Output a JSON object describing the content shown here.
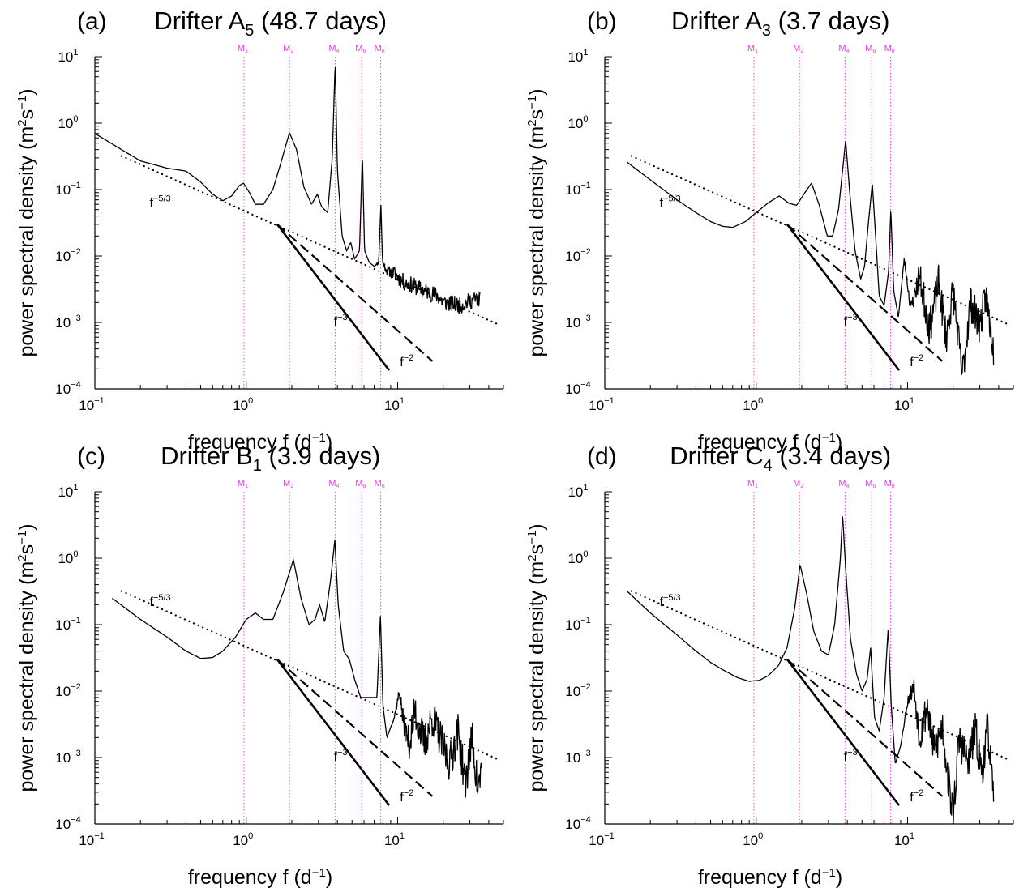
{
  "axes": {
    "xlabel_main": "frequency f (d",
    "xlabel_exp": "−1",
    "xlabel_close": ")",
    "ylabel_main": "power spectral density (m",
    "ylabel_exp1": "2",
    "ylabel_mid": "s",
    "ylabel_exp2": "−1",
    "ylabel_close": ")",
    "xscale": "log",
    "yscale": "log",
    "xlim": [
      0.1,
      50
    ],
    "ylim": [
      0.0001,
      10
    ],
    "x_ticks": [
      {
        "base": "10",
        "exp": "−1"
      },
      {
        "base": "10",
        "exp": "0"
      },
      {
        "base": "10",
        "exp": "1"
      }
    ],
    "y_ticks": [
      {
        "base": "10",
        "exp": "−4"
      },
      {
        "base": "10",
        "exp": "−3"
      },
      {
        "base": "10",
        "exp": "−2"
      },
      {
        "base": "10",
        "exp": "−1"
      },
      {
        "base": "10",
        "exp": "0"
      },
      {
        "base": "10",
        "exp": "1"
      }
    ]
  },
  "tidal_constituents": [
    {
      "label": "M",
      "sub": "1",
      "freq": 0.966
    },
    {
      "label": "M",
      "sub": "2",
      "freq": 1.932
    },
    {
      "label": "M",
      "sub": "4",
      "freq": 3.864
    },
    {
      "label": "M",
      "sub": "6",
      "freq": 5.796
    },
    {
      "label": "M",
      "sub": "8",
      "freq": 7.728
    }
  ],
  "slope_labels": {
    "f53": {
      "base": "f",
      "exp": "−5/3"
    },
    "f3": {
      "base": "f",
      "exp": "−3"
    },
    "f2": {
      "base": "f",
      "exp": "−2"
    }
  },
  "colors": {
    "tide_lines": "#e83ce8",
    "spectrum": "#000000"
  },
  "chart_data": [
    {
      "type": "line",
      "panel": "(a)",
      "title_pre": "Drifter A",
      "title_sub": "5",
      "title_post": " (48.7 days)",
      "reference_lines": {
        "f53": {
          "x": [
            0.15,
            45
          ],
          "y": [
            0.32,
            0.00096
          ]
        },
        "f3": {
          "x": [
            1.6,
            8.8
          ],
          "y": [
            0.03,
            0.00019
          ]
        },
        "f2": {
          "x": [
            1.6,
            17
          ],
          "y": [
            0.03,
            0.00026
          ]
        }
      },
      "slope_label_pos": {
        "f53": [
          0.27,
          0.055
        ],
        "f3": [
          4.2,
          0.0009
        ],
        "f2": [
          11.5,
          0.00022
        ]
      },
      "spectrum": {
        "noise_from": 7.0,
        "noise_amp": 0.13,
        "seed": 11,
        "xmin": 0.1,
        "xmax": 35,
        "knots": [
          [
            0.1,
            0.7
          ],
          [
            0.15,
            0.4
          ],
          [
            0.2,
            0.27
          ],
          [
            0.3,
            0.21
          ],
          [
            0.4,
            0.19
          ],
          [
            0.5,
            0.13
          ],
          [
            0.6,
            0.085
          ],
          [
            0.7,
            0.068
          ],
          [
            0.8,
            0.08
          ],
          [
            0.9,
            0.115
          ],
          [
            0.96,
            0.125
          ],
          [
            1.05,
            0.09
          ],
          [
            1.15,
            0.06
          ],
          [
            1.3,
            0.06
          ],
          [
            1.5,
            0.1
          ],
          [
            1.7,
            0.26
          ],
          [
            1.93,
            0.72
          ],
          [
            2.15,
            0.4
          ],
          [
            2.4,
            0.11
          ],
          [
            2.7,
            0.06
          ],
          [
            2.95,
            0.085
          ],
          [
            3.15,
            0.055
          ],
          [
            3.45,
            0.045
          ],
          [
            3.7,
            0.3
          ],
          [
            3.87,
            8.5
          ],
          [
            4.0,
            0.2
          ],
          [
            4.3,
            0.02
          ],
          [
            4.6,
            0.012
          ],
          [
            4.9,
            0.016
          ],
          [
            5.2,
            0.009
          ],
          [
            5.6,
            0.012
          ],
          [
            5.85,
            0.35
          ],
          [
            6.05,
            0.012
          ],
          [
            6.5,
            0.008
          ],
          [
            7.0,
            0.007
          ],
          [
            7.5,
            0.008
          ],
          [
            7.75,
            0.06
          ],
          [
            7.95,
            0.008
          ],
          [
            8.5,
            0.006
          ],
          [
            9.5,
            0.0055
          ],
          [
            11,
            0.004
          ],
          [
            13,
            0.0035
          ],
          [
            15,
            0.003
          ],
          [
            18,
            0.0026
          ],
          [
            20,
            0.002
          ],
          [
            23,
            0.0019
          ],
          [
            26,
            0.0018
          ],
          [
            30,
            0.0021
          ],
          [
            35,
            0.0023
          ]
        ]
      }
    },
    {
      "type": "line",
      "panel": "(b)",
      "title_pre": "Drifter A",
      "title_sub": "3",
      "title_post": " (3.7 days)",
      "reference_lines": {
        "f53": {
          "x": [
            0.15,
            45
          ],
          "y": [
            0.32,
            0.00096
          ]
        },
        "f3": {
          "x": [
            1.6,
            8.8
          ],
          "y": [
            0.03,
            0.00019
          ]
        },
        "f2": {
          "x": [
            1.6,
            17
          ],
          "y": [
            0.03,
            0.00026
          ]
        }
      },
      "slope_label_pos": {
        "f53": [
          0.27,
          0.055
        ],
        "f3": [
          4.2,
          0.0009
        ],
        "f2": [
          11.5,
          0.00022
        ]
      },
      "spectrum": {
        "noise_from": 9.0,
        "noise_amp": 0.28,
        "seed": 23,
        "xmin": 0.14,
        "xmax": 37,
        "knots": [
          [
            0.14,
            0.26
          ],
          [
            0.2,
            0.14
          ],
          [
            0.3,
            0.07
          ],
          [
            0.4,
            0.045
          ],
          [
            0.5,
            0.033
          ],
          [
            0.6,
            0.028
          ],
          [
            0.7,
            0.027
          ],
          [
            0.85,
            0.033
          ],
          [
            1.0,
            0.045
          ],
          [
            1.2,
            0.063
          ],
          [
            1.42,
            0.08
          ],
          [
            1.65,
            0.062
          ],
          [
            1.85,
            0.058
          ],
          [
            2.1,
            0.09
          ],
          [
            2.32,
            0.125
          ],
          [
            2.6,
            0.06
          ],
          [
            2.95,
            0.02
          ],
          [
            3.2,
            0.02
          ],
          [
            3.5,
            0.05
          ],
          [
            3.9,
            0.55
          ],
          [
            4.15,
            0.09
          ],
          [
            4.5,
            0.012
          ],
          [
            4.9,
            0.0045
          ],
          [
            5.2,
            0.007
          ],
          [
            5.5,
            0.03
          ],
          [
            5.85,
            0.125
          ],
          [
            6.15,
            0.02
          ],
          [
            6.5,
            0.0025
          ],
          [
            7.0,
            0.0018
          ],
          [
            7.5,
            0.006
          ],
          [
            7.75,
            0.05
          ],
          [
            8.1,
            0.003
          ],
          [
            8.7,
            0.0012
          ],
          [
            9.5,
            0.009
          ],
          [
            10.5,
            0.0016
          ],
          [
            12,
            0.005
          ],
          [
            14,
            0.0008
          ],
          [
            16,
            0.004
          ],
          [
            18,
            0.0006
          ],
          [
            20,
            0.003
          ],
          [
            23,
            0.00016
          ],
          [
            26,
            0.002
          ],
          [
            30,
            0.0009
          ],
          [
            33,
            0.0025
          ],
          [
            37,
            0.0004
          ]
        ]
      }
    },
    {
      "type": "line",
      "panel": "(c)",
      "title_pre": "Drifter B",
      "title_sub": "1",
      "title_post": " (3.9 days)",
      "reference_lines": {
        "f53": {
          "x": [
            0.15,
            45
          ],
          "y": [
            0.32,
            0.00096
          ]
        },
        "f3": {
          "x": [
            1.6,
            8.8
          ],
          "y": [
            0.03,
            0.00019
          ]
        },
        "f2": {
          "x": [
            1.6,
            17
          ],
          "y": [
            0.03,
            0.00026
          ]
        }
      },
      "slope_label_pos": {
        "f53": [
          0.27,
          0.19
        ],
        "f3": [
          4.2,
          0.0009
        ],
        "f2": [
          11.5,
          0.00022
        ]
      },
      "spectrum": {
        "noise_from": 9.0,
        "noise_amp": 0.3,
        "seed": 37,
        "xmin": 0.13,
        "xmax": 36,
        "knots": [
          [
            0.13,
            0.25
          ],
          [
            0.2,
            0.12
          ],
          [
            0.3,
            0.065
          ],
          [
            0.4,
            0.04
          ],
          [
            0.5,
            0.031
          ],
          [
            0.6,
            0.032
          ],
          [
            0.7,
            0.04
          ],
          [
            0.85,
            0.065
          ],
          [
            1.0,
            0.12
          ],
          [
            1.15,
            0.15
          ],
          [
            1.3,
            0.12
          ],
          [
            1.5,
            0.12
          ],
          [
            1.75,
            0.3
          ],
          [
            2.05,
            0.95
          ],
          [
            2.3,
            0.25
          ],
          [
            2.6,
            0.1
          ],
          [
            2.85,
            0.12
          ],
          [
            3.05,
            0.2
          ],
          [
            3.3,
            0.11
          ],
          [
            3.6,
            0.45
          ],
          [
            3.85,
            1.9
          ],
          [
            4.05,
            0.2
          ],
          [
            4.4,
            0.04
          ],
          [
            4.8,
            0.03
          ],
          [
            5.2,
            0.015
          ],
          [
            5.7,
            0.008
          ],
          [
            6.5,
            0.008
          ],
          [
            7.3,
            0.008
          ],
          [
            7.7,
            0.14
          ],
          [
            8.0,
            0.006
          ],
          [
            8.5,
            0.002
          ],
          [
            9.5,
            0.004
          ],
          [
            10.3,
            0.01
          ],
          [
            11,
            0.003
          ],
          [
            12,
            0.0016
          ],
          [
            13,
            0.005
          ],
          [
            15,
            0.0016
          ],
          [
            17,
            0.004
          ],
          [
            19,
            0.002
          ],
          [
            22,
            0.0008
          ],
          [
            25,
            0.0025
          ],
          [
            28,
            0.0004
          ],
          [
            31,
            0.002
          ],
          [
            34,
            0.0003
          ],
          [
            36,
            0.0008
          ]
        ]
      }
    },
    {
      "type": "line",
      "panel": "(d)",
      "title_pre": "Drifter C",
      "title_sub": "4",
      "title_post": " (3.4 days)",
      "reference_lines": {
        "f53": {
          "x": [
            0.15,
            45
          ],
          "y": [
            0.32,
            0.00096
          ]
        },
        "f3": {
          "x": [
            1.6,
            8.8
          ],
          "y": [
            0.03,
            0.00019
          ]
        },
        "f2": {
          "x": [
            1.6,
            17
          ],
          "y": [
            0.03,
            0.00026
          ]
        }
      },
      "slope_label_pos": {
        "f53": [
          0.27,
          0.19
        ],
        "f3": [
          4.2,
          0.0009
        ],
        "f2": [
          11.5,
          0.00022
        ]
      },
      "spectrum": {
        "noise_from": 9.0,
        "noise_amp": 0.3,
        "seed": 53,
        "xmin": 0.14,
        "xmax": 37,
        "knots": [
          [
            0.14,
            0.32
          ],
          [
            0.2,
            0.15
          ],
          [
            0.3,
            0.07
          ],
          [
            0.4,
            0.04
          ],
          [
            0.5,
            0.027
          ],
          [
            0.6,
            0.021
          ],
          [
            0.75,
            0.016
          ],
          [
            0.9,
            0.014
          ],
          [
            1.05,
            0.0145
          ],
          [
            1.2,
            0.017
          ],
          [
            1.4,
            0.024
          ],
          [
            1.6,
            0.045
          ],
          [
            1.8,
            0.18
          ],
          [
            1.95,
            0.8
          ],
          [
            2.15,
            0.3
          ],
          [
            2.4,
            0.08
          ],
          [
            2.7,
            0.04
          ],
          [
            3.0,
            0.035
          ],
          [
            3.3,
            0.1
          ],
          [
            3.6,
            1.0
          ],
          [
            3.72,
            4.6
          ],
          [
            3.9,
            0.7
          ],
          [
            4.2,
            0.06
          ],
          [
            4.6,
            0.018
          ],
          [
            5.0,
            0.01
          ],
          [
            5.4,
            0.015
          ],
          [
            5.7,
            0.045
          ],
          [
            6.05,
            0.004
          ],
          [
            6.5,
            0.0025
          ],
          [
            7.0,
            0.008
          ],
          [
            7.45,
            0.09
          ],
          [
            7.8,
            0.006
          ],
          [
            8.3,
            0.0008
          ],
          [
            9.0,
            0.0015
          ],
          [
            10,
            0.007
          ],
          [
            11,
            0.012
          ],
          [
            12,
            0.002
          ],
          [
            13.5,
            0.006
          ],
          [
            15,
            0.0012
          ],
          [
            17,
            0.003
          ],
          [
            19,
            0.0003
          ],
          [
            20,
            0.00015
          ],
          [
            22,
            0.002
          ],
          [
            25,
            0.0008
          ],
          [
            28,
            0.0025
          ],
          [
            31,
            0.0006
          ],
          [
            34,
            0.003
          ],
          [
            37,
            0.00018
          ]
        ]
      }
    }
  ]
}
